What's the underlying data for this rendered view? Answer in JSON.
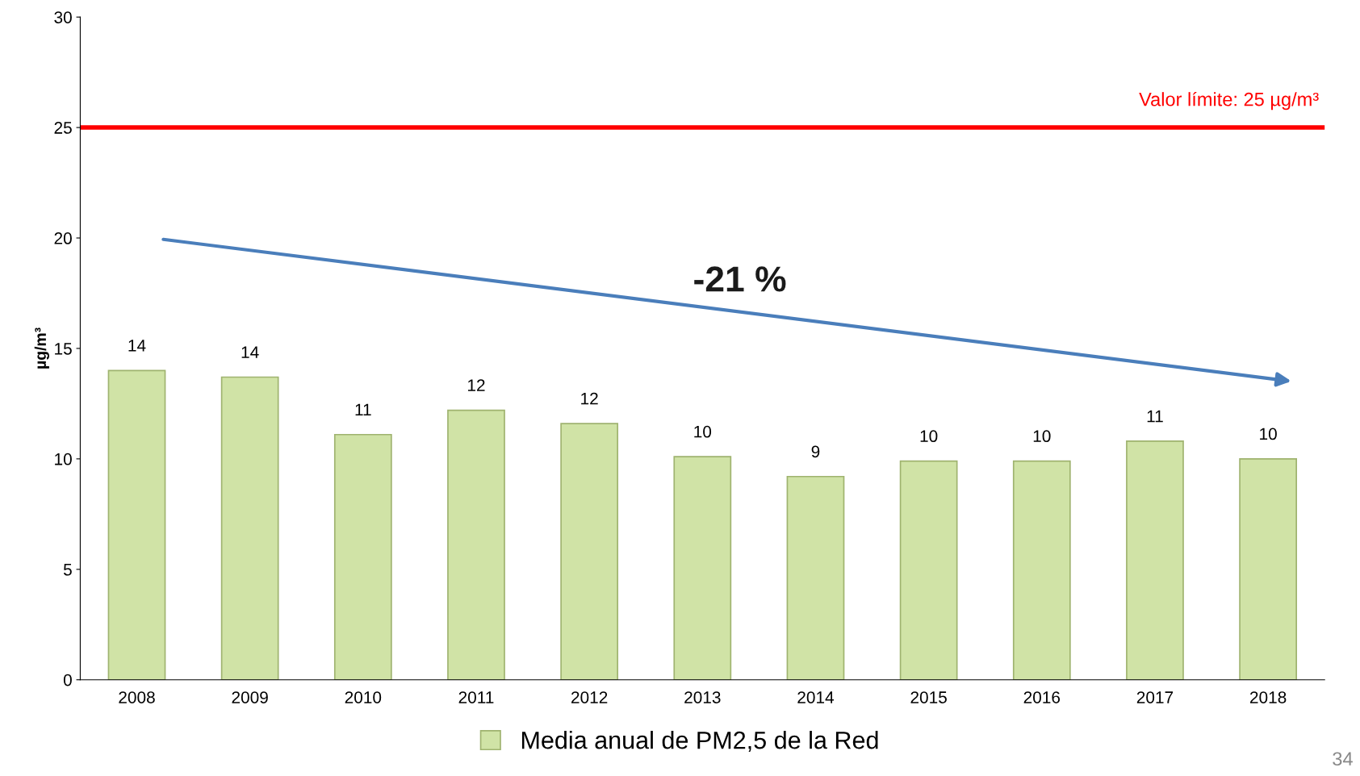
{
  "chart_data": {
    "type": "bar",
    "ylabel": "µg/m³",
    "categories": [
      "2008",
      "2009",
      "2010",
      "2011",
      "2012",
      "2013",
      "2014",
      "2015",
      "2016",
      "2017",
      "2018"
    ],
    "series": [
      {
        "name": "Media anual de PM2,5 de la Red",
        "color": "#d0e3a6",
        "values": [
          14.0,
          13.7,
          11.1,
          12.2,
          11.6,
          10.1,
          9.2,
          9.9,
          9.9,
          10.8,
          10.0
        ],
        "value_labels": [
          "14",
          "14",
          "11",
          "12",
          "12",
          "10",
          "9",
          "10",
          "10",
          "11",
          "10"
        ]
      }
    ],
    "ylim": [
      0,
      30
    ],
    "yticks": [
      0,
      5,
      10,
      15,
      20,
      25,
      30
    ],
    "ref_lines": [
      {
        "axis": "y",
        "value": 25,
        "label": "Valor límite: 25 µg/m³",
        "color": "#ff0000",
        "line_style": "solid"
      }
    ],
    "annotations": [
      "-21 %",
      "34"
    ],
    "legend": "bottom",
    "grid": false
  }
}
